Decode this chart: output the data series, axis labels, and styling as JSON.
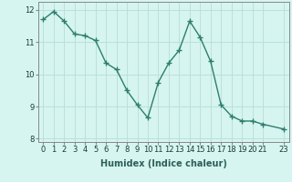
{
  "x": [
    0,
    1,
    2,
    3,
    4,
    5,
    6,
    7,
    8,
    9,
    10,
    11,
    12,
    13,
    14,
    15,
    16,
    17,
    18,
    19,
    20,
    21,
    23
  ],
  "y": [
    11.7,
    11.95,
    11.65,
    11.25,
    11.2,
    11.05,
    10.35,
    10.15,
    9.5,
    9.05,
    8.65,
    9.75,
    10.35,
    10.75,
    11.65,
    11.15,
    10.4,
    9.05,
    8.7,
    8.55,
    8.55,
    8.45,
    8.3
  ],
  "line_color": "#2e7d6e",
  "marker": "+",
  "marker_size": 4,
  "marker_lw": 1.0,
  "bg_color": "#d6f5f0",
  "grid_color": "#b8ddd8",
  "xlabel": "Humidex (Indice chaleur)",
  "xlabel_fontsize": 7,
  "ylim": [
    7.9,
    12.25
  ],
  "xlim": [
    -0.5,
    23.5
  ],
  "yticks": [
    8,
    9,
    10,
    11,
    12
  ],
  "xticks": [
    0,
    1,
    2,
    3,
    4,
    5,
    6,
    7,
    8,
    9,
    10,
    11,
    12,
    13,
    14,
    15,
    16,
    17,
    18,
    19,
    20,
    21,
    23
  ],
  "tick_fontsize": 6,
  "linewidth": 1.0
}
